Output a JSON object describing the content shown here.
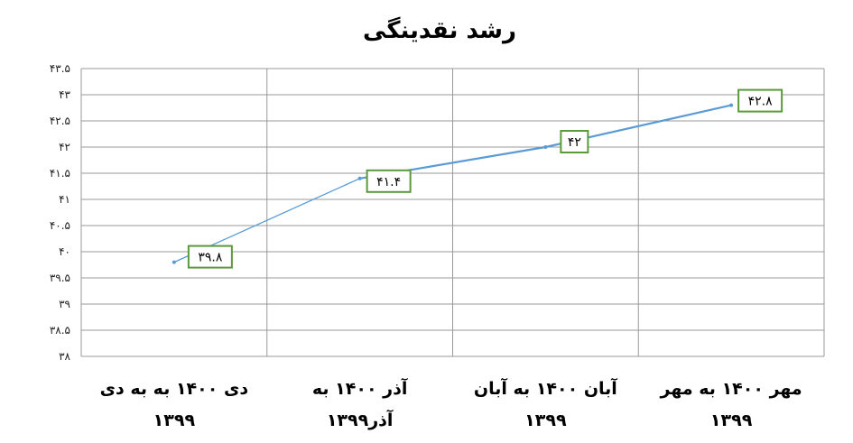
{
  "chart_data": {
    "type": "line",
    "title": "رشد نقدینگی",
    "categories": [
      [
        "مهر ۱۴۰۰ به مهر",
        "۱۳۹۹"
      ],
      [
        "آبان ۱۴۰۰ به آبان",
        "۱۳۹۹"
      ],
      [
        "آذر ۱۴۰۰ به",
        "آذر۱۳۹۹"
      ],
      [
        "دی ۱۴۰۰ به به دی",
        "۱۳۹۹"
      ]
    ],
    "category_order": "right-to-left",
    "values": [
      42.8,
      42,
      41.4,
      39.8
    ],
    "data_labels": [
      "۴۲.۸",
      "۴۲",
      "۴۱.۴",
      "۳۹.۸"
    ],
    "ylim": [
      38,
      43.5
    ],
    "yticks": [
      {
        "value": 43.5,
        "label": "۴۳.۵"
      },
      {
        "value": 43,
        "label": "۴۳"
      },
      {
        "value": 42.5,
        "label": "۴۲.۵"
      },
      {
        "value": 42,
        "label": "۴۲"
      },
      {
        "value": 41.5,
        "label": "۴۱.۵"
      },
      {
        "value": 41,
        "label": "۴۱"
      },
      {
        "value": 40.5,
        "label": "۴۰.۵"
      },
      {
        "value": 40,
        "label": "۴۰"
      },
      {
        "value": 39.5,
        "label": "۳۹.۵"
      },
      {
        "value": 39,
        "label": "۳۹"
      },
      {
        "value": 38.5,
        "label": "۳۸.۵"
      },
      {
        "value": 38,
        "label": "۳۸"
      }
    ],
    "grid": true,
    "legend": "none",
    "colors": {
      "line": "#5b9bd5",
      "label_border": "#5a9a3a",
      "grid": "#9a9a9a"
    }
  }
}
